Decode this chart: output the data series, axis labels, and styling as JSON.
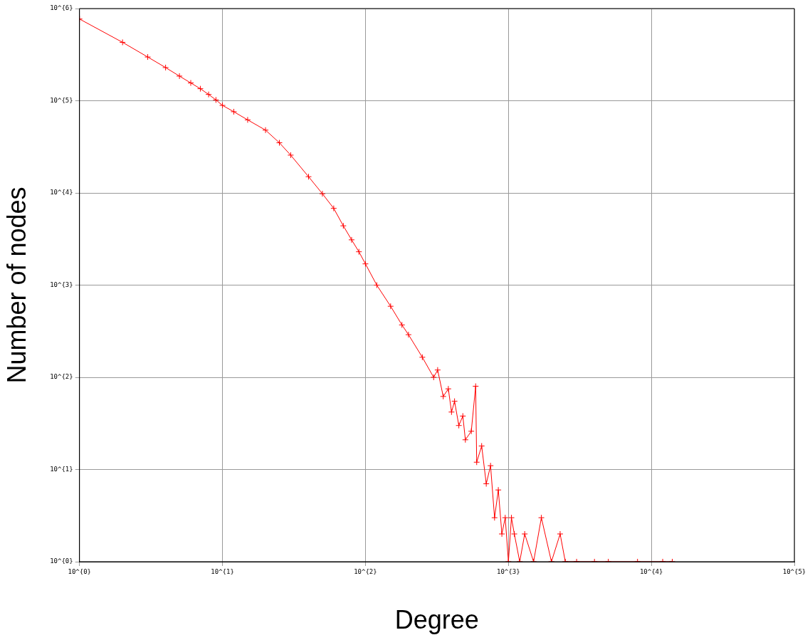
{
  "chart_data": {
    "type": "line",
    "xlabel": "Degree",
    "ylabel": "Number of nodes",
    "log": "xy",
    "grid": true,
    "marker": "cross",
    "line_style": "solid",
    "xlim": [
      1,
      100000
    ],
    "ylim": [
      1,
      1000000
    ],
    "xticks": [
      {
        "value": 1,
        "label": "10^{0}"
      },
      {
        "value": 10,
        "label": "10^{1}"
      },
      {
        "value": 100,
        "label": "10^{2}"
      },
      {
        "value": 1000,
        "label": "10^{3}"
      },
      {
        "value": 10000,
        "label": "10^{4}"
      },
      {
        "value": 100000,
        "label": "10^{5}"
      }
    ],
    "yticks": [
      {
        "value": 1,
        "label": "10^{0}"
      },
      {
        "value": 10,
        "label": "10^{1}"
      },
      {
        "value": 100,
        "label": "10^{2}"
      },
      {
        "value": 1000,
        "label": "10^{3}"
      },
      {
        "value": 10000,
        "label": "10^{4}"
      },
      {
        "value": 100000,
        "label": "10^{5}"
      },
      {
        "value": 1000000,
        "label": "10^{6}"
      }
    ],
    "series": [
      {
        "color": "#ff0000",
        "x": [
          1,
          2,
          3,
          4,
          5,
          6,
          7,
          8,
          9,
          10,
          12,
          15,
          20,
          25,
          30,
          40,
          50,
          60,
          70,
          80,
          90,
          100,
          120,
          150,
          180,
          200,
          250,
          300,
          320,
          350,
          380,
          400,
          420,
          450,
          480,
          500,
          550,
          590,
          600,
          650,
          700,
          750,
          800,
          850,
          900,
          950,
          1000,
          1050,
          1100,
          1200,
          1300,
          1500,
          1700,
          2000,
          2300,
          2500,
          3000,
          4000,
          5000,
          8000,
          12000,
          14000
        ],
        "values": [
          770000,
          430000,
          298000,
          229000,
          185000,
          156000,
          135000,
          117000,
          102000,
          89000,
          76000,
          62000,
          48000,
          35000,
          25700,
          15000,
          9800,
          6800,
          4400,
          3100,
          2300,
          1700,
          1000,
          590,
          370,
          290,
          165,
          100,
          120,
          62,
          75,
          42,
          55,
          30,
          38,
          21,
          26,
          80,
          12,
          18,
          7,
          11,
          3,
          6,
          2,
          3,
          1,
          3,
          2,
          1,
          2,
          1,
          3,
          1,
          2,
          1,
          1,
          1,
          1,
          1,
          1,
          1
        ]
      }
    ]
  }
}
